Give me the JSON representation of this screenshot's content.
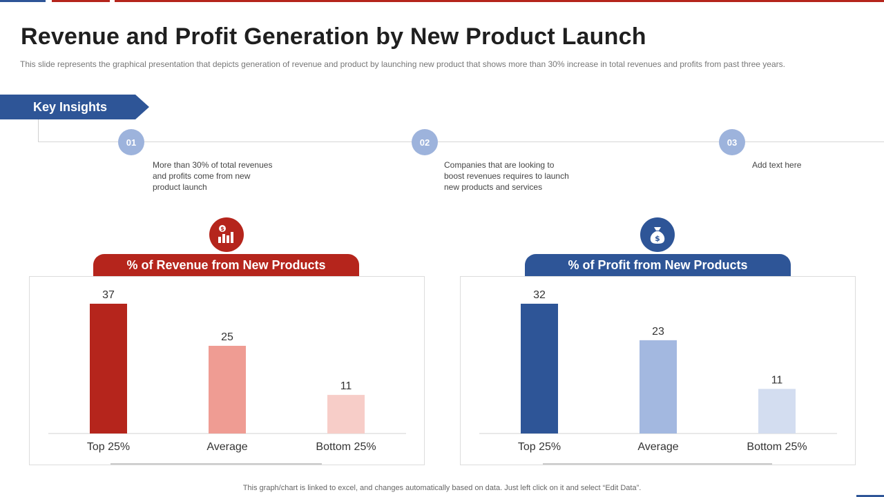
{
  "slide": {
    "title": "Revenue and Profit Generation by New Product Launch",
    "subtitle": "This slide represents the graphical presentation that depicts generation  of revenue  and product by launching new product that shows more than 30% increase in total revenues  and profits from past three years.",
    "footer": "This graph/chart is linked to excel,  and changes automatically based on data. Just left click on it and select “Edit Data”."
  },
  "insights": {
    "label": "Key Insights",
    "items": [
      {
        "number": "01",
        "text": "More than 30% of total revenues  and profits come from new product launch"
      },
      {
        "number": "02",
        "text": "Companies that are looking to boost revenues  requires to launch new products and services"
      },
      {
        "number": "03",
        "text": "Add text here"
      }
    ]
  },
  "colors": {
    "red": "#b5251c",
    "blue": "#2e5597",
    "revenue_bars": [
      "#b5251c",
      "#ef9c93",
      "#f7cdc8"
    ],
    "profit_bars": [
      "#2e5597",
      "#a3b8e0",
      "#d3ddf0"
    ]
  },
  "icons": {
    "revenue": "money-bar-chart-icon",
    "profit": "money-bag-icon"
  },
  "chart_data": [
    {
      "type": "bar",
      "title": "% of Revenue from New Products",
      "categories": [
        "Top 25%",
        "Average",
        "Bottom 25%"
      ],
      "values": [
        37,
        25,
        11
      ],
      "ylim": [
        0,
        37
      ],
      "grid": false,
      "data_labels": true
    },
    {
      "type": "bar",
      "title": "% of Profit from New Products",
      "categories": [
        "Top 25%",
        "Average",
        "Bottom 25%"
      ],
      "values": [
        32,
        23,
        11
      ],
      "ylim": [
        0,
        32
      ],
      "grid": false,
      "data_labels": true
    }
  ]
}
